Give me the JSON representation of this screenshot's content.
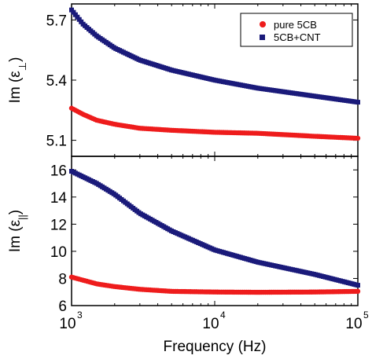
{
  "chart_data": {
    "type": "scatter",
    "x_scale": "log",
    "xlabel": "Frequency (Hz)",
    "xlim": [
      1000,
      100000
    ],
    "x_ticks": [
      {
        "base": "10",
        "exp": "3"
      },
      {
        "base": "10",
        "exp": "4"
      },
      {
        "base": "10",
        "exp": "5"
      }
    ],
    "colors": {
      "pure": "#ee1c1c",
      "cnt": "#1a1a7a"
    },
    "legend": {
      "placement": "top-right of top panel",
      "entries": [
        {
          "label": "pure 5CB",
          "marker": "circle",
          "color": "#ee1c1c"
        },
        {
          "label": "5CB+CNT",
          "marker": "square",
          "color": "#1a1a7a"
        }
      ]
    },
    "panels": [
      {
        "ylabel": {
          "main": "Im (ε",
          "sub": "⊥",
          "close": ")"
        },
        "ylim": [
          5.02,
          5.78
        ],
        "yticks": [
          5.1,
          5.4,
          5.7
        ],
        "ytick_labels": [
          "5.1",
          "5.4",
          "5.7"
        ],
        "series": [
          {
            "name": "5CB+CNT",
            "marker": "square",
            "x": [
              1000,
              1200,
              1500,
              2000,
              3000,
              5000,
              10000,
              20000,
              50000,
              100000
            ],
            "y": [
              5.75,
              5.68,
              5.62,
              5.56,
              5.5,
              5.45,
              5.4,
              5.36,
              5.32,
              5.29
            ]
          },
          {
            "name": "pure 5CB",
            "marker": "circle",
            "x": [
              1000,
              1200,
              1500,
              2000,
              3000,
              5000,
              10000,
              20000,
              50000,
              100000
            ],
            "y": [
              5.26,
              5.23,
              5.2,
              5.18,
              5.16,
              5.15,
              5.14,
              5.135,
              5.12,
              5.11
            ]
          }
        ]
      },
      {
        "ylabel": {
          "main": "Im (ε",
          "sub": "||",
          "close": ")"
        },
        "ylim": [
          6,
          17
        ],
        "yticks": [
          6,
          8,
          10,
          12,
          14,
          16
        ],
        "ytick_labels": [
          "6",
          "8",
          "10",
          "12",
          "14",
          "16"
        ],
        "series": [
          {
            "name": "5CB+CNT",
            "marker": "square",
            "x": [
              1000,
              1500,
              2000,
              3000,
              5000,
              10000,
              20000,
              50000,
              100000
            ],
            "y": [
              15.9,
              15.0,
              14.2,
              12.8,
              11.5,
              10.1,
              9.2,
              8.3,
              7.5
            ]
          },
          {
            "name": "pure 5CB",
            "marker": "circle",
            "x": [
              1000,
              1500,
              2000,
              3000,
              5000,
              10000,
              20000,
              50000,
              100000
            ],
            "y": [
              8.1,
              7.6,
              7.4,
              7.2,
              7.05,
              7.0,
              6.98,
              7.0,
              7.05
            ]
          }
        ]
      }
    ]
  }
}
